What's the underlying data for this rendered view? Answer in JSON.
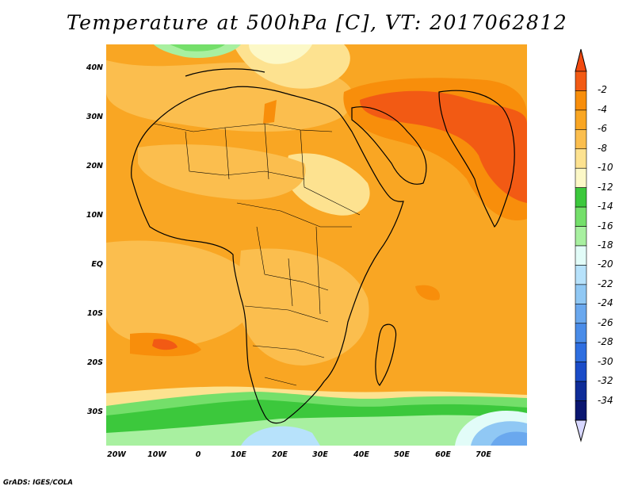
{
  "title": "Temperature at 500hPa [C], VT: 2017062812",
  "credit": "GrADS: IGES/COLA",
  "map": {
    "lat_labels": [
      "40N",
      "30N",
      "20N",
      "10N",
      "EQ",
      "10S",
      "20S",
      "30S"
    ],
    "lon_labels": [
      "20W",
      "10W",
      "0",
      "10E",
      "20E",
      "30E",
      "40E",
      "50E",
      "60E",
      "70E"
    ],
    "background_color": "#f9a623"
  },
  "colorbar": {
    "labels": [
      "-2",
      "-4",
      "-6",
      "-8",
      "-10",
      "-12",
      "-14",
      "-16",
      "-18",
      "-20",
      "-22",
      "-24",
      "-26",
      "-28",
      "-30",
      "-32",
      "-34"
    ],
    "colors": [
      "#f25a14",
      "#f88e0b",
      "#f9a623",
      "#fbbe4e",
      "#fde290",
      "#fcf8c7",
      "#3cc83c",
      "#74df6a",
      "#a8f0a0",
      "#e2fcf8",
      "#b7e2fb",
      "#90c8f4",
      "#6aa8ee",
      "#4a8ce8",
      "#2e6ee0",
      "#1a4cc8",
      "#0e2c98",
      "#0a1670"
    ],
    "over_color": "#f24a10",
    "under_color": "#d8d8ff"
  }
}
